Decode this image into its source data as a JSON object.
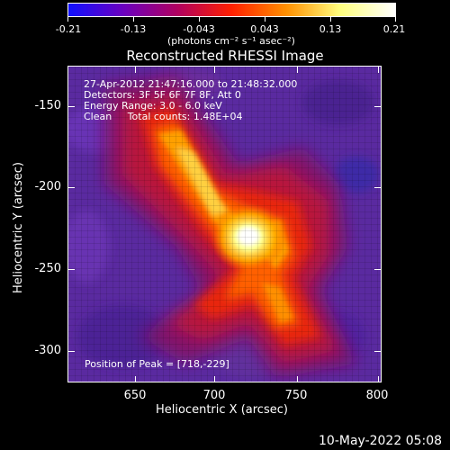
{
  "colorbar": {
    "tick_labels": [
      "-0.21",
      "-0.13",
      "-0.043",
      "0.043",
      "0.13",
      "0.21"
    ],
    "unit_label": "(photons cm⁻² s⁻¹ asec⁻²)",
    "range": [
      -0.21,
      0.21
    ],
    "colors": [
      "#1010ff",
      "#6a00c0",
      "#b00060",
      "#ff2000",
      "#ff9000",
      "#ffff80",
      "#ffffff"
    ]
  },
  "title": "Reconstructed RHESSI Image",
  "annotations": {
    "time_range": "27-Apr-2012 21:47:16.000 to 21:48:32.000",
    "detectors": "Detectors: 3F 5F 6F 7F 8F, Att 0",
    "energy_range": "Energy Range: 3.0 - 6.0 keV",
    "clean_totals": "Clean     Total counts: 1.48E+04",
    "peak_position": "Position of Peak = [718,-229]"
  },
  "axes": {
    "xlabel": "Heliocentric X (arcsec)",
    "ylabel": "Heliocentric Y (arcsec)",
    "x_tick_labels": [
      "650",
      "700",
      "750",
      "800"
    ],
    "y_tick_labels": [
      "-150",
      "-200",
      "-250",
      "-300"
    ],
    "x_ticks": [
      650,
      700,
      750,
      800
    ],
    "y_ticks": [
      -150,
      -200,
      -250,
      -300
    ],
    "xlim": [
      609,
      801
    ],
    "ylim": [
      -319,
      -127
    ]
  },
  "image": {
    "peak_x": 718,
    "peak_y": -229,
    "background_color": "#5a2aa0"
  },
  "timestamp": "10-May-2022 05:08"
}
